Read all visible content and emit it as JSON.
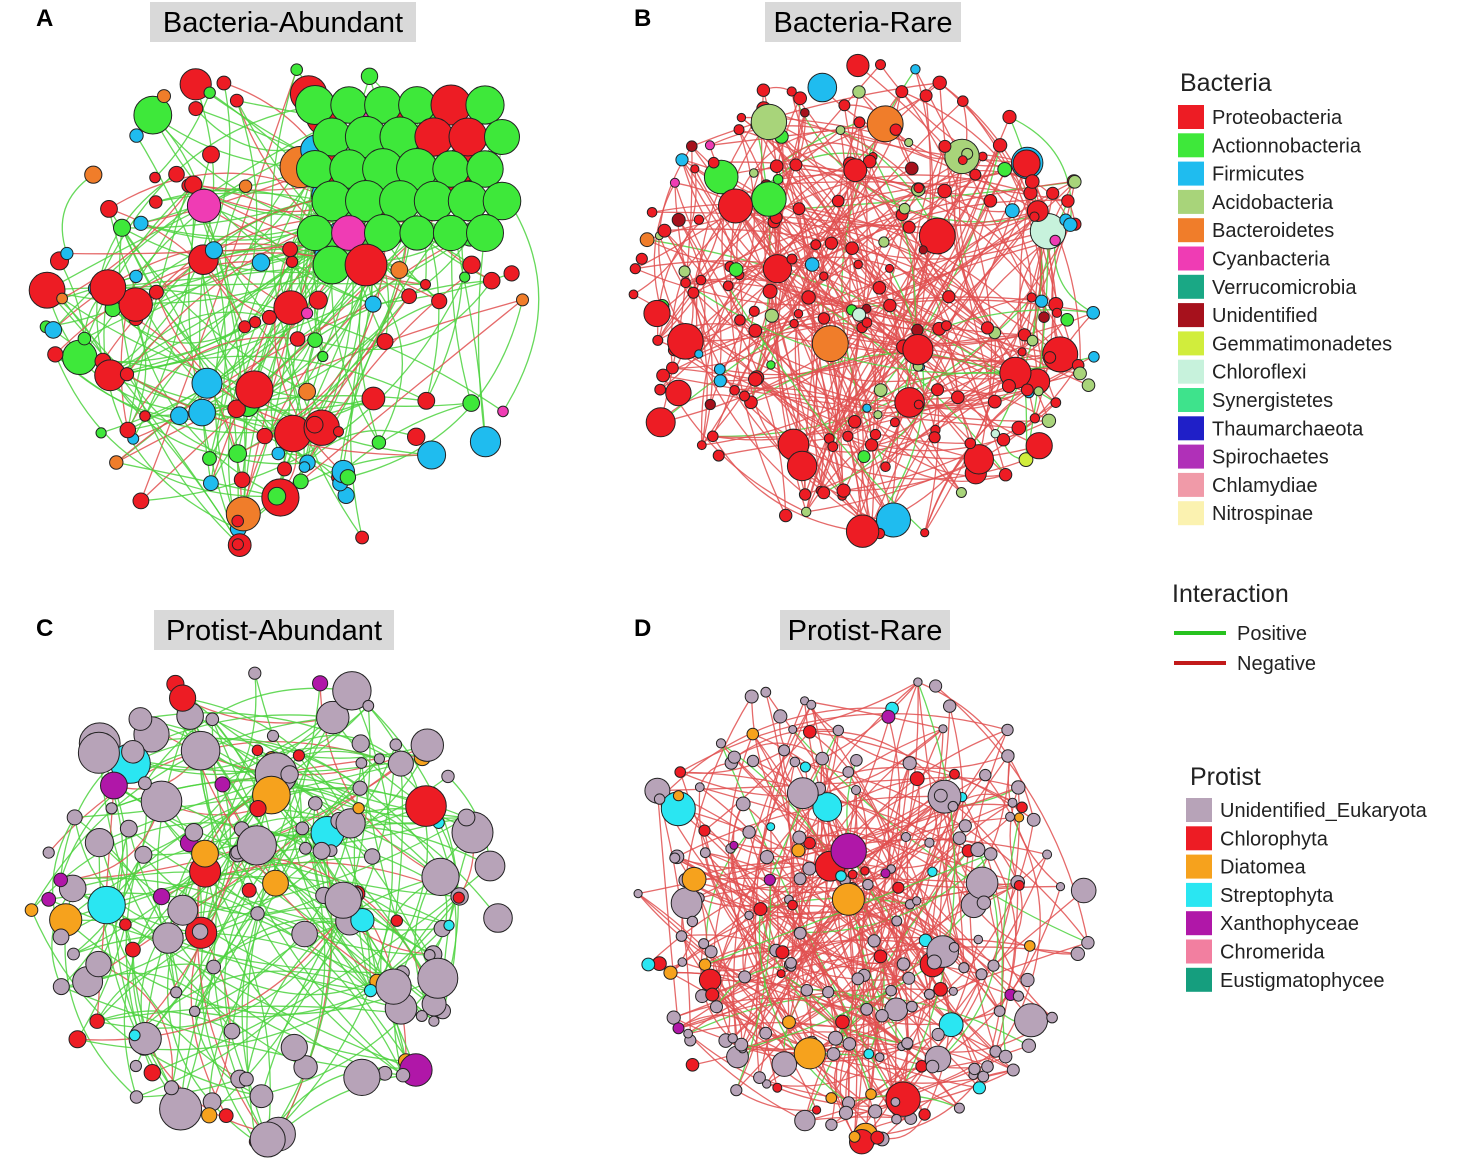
{
  "panels": [
    {
      "letter": "A",
      "title": "Bacteria-Abundant",
      "edge_mix": "positive",
      "palette": "bacteria",
      "seed": 11,
      "nodes": 150
    },
    {
      "letter": "B",
      "title": "Bacteria-Rare",
      "edge_mix": "negative",
      "palette": "bacteria",
      "seed": 23,
      "nodes": 240
    },
    {
      "letter": "C",
      "title": "Protist-Abundant",
      "edge_mix": "positive",
      "palette": "protist",
      "seed": 37,
      "nodes": 150
    },
    {
      "letter": "D",
      "title": "Protist-Rare",
      "edge_mix": "negative",
      "palette": "protist",
      "seed": 53,
      "nodes": 230
    }
  ],
  "legend_bacteria": {
    "heading": "Bacteria",
    "items": [
      {
        "label": "Proteobacteria",
        "color": "#ed1c24"
      },
      {
        "label": "Actionnobacteria",
        "color": "#3ee83a"
      },
      {
        "label": "Firmicutes",
        "color": "#1fbcef"
      },
      {
        "label": "Acidobacteria",
        "color": "#a8d47a"
      },
      {
        "label": "Bacteroidetes",
        "color": "#f07d2a"
      },
      {
        "label": "Cyanbacteria",
        "color": "#ef3cb4"
      },
      {
        "label": "Verrucomicrobia",
        "color": "#1aa885"
      },
      {
        "label": "Unidentified",
        "color": "#a6111c"
      },
      {
        "label": "Gemmatimonadetes",
        "color": "#d1ed3c"
      },
      {
        "label": "Chloroflexi",
        "color": "#c7f2dc"
      },
      {
        "label": "Synergistetes",
        "color": "#3ee38c"
      },
      {
        "label": "Thaumarchaeota",
        "color": "#1f1fc8"
      },
      {
        "label": "Spirochaetes",
        "color": "#b030b8"
      },
      {
        "label": "Chlamydiae",
        "color": "#f09aa8"
      },
      {
        "label": "Nitrospinae",
        "color": "#fbf2b0"
      }
    ]
  },
  "legend_interaction": {
    "heading": "Interaction",
    "items": [
      {
        "label": "Positive",
        "color": "#27c21f"
      },
      {
        "label": "Negative",
        "color": "#c21a1a"
      }
    ]
  },
  "legend_protist": {
    "heading": "Protist",
    "items": [
      {
        "label": "Unidentified_Eukaryota",
        "color": "#b7a3b8"
      },
      {
        "label": "Chlorophyta",
        "color": "#ed1c24"
      },
      {
        "label": "Diatomea",
        "color": "#f6a21d"
      },
      {
        "label": "Streptophyta",
        "color": "#2ae6f2"
      },
      {
        "label": "Xanthophyceae",
        "color": "#b017a8"
      },
      {
        "label": "Chromerida",
        "color": "#f27fa0"
      },
      {
        "label": "Eustigmatophycee",
        "color": "#159e7e"
      }
    ]
  },
  "edge_colors": {
    "positive": "#4cd23e",
    "negative": "#e05050"
  }
}
